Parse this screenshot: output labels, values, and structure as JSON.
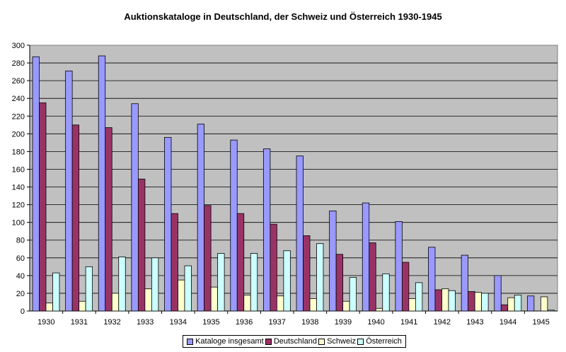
{
  "chart_data": {
    "type": "bar",
    "title": "Auktionskataloge in Deutschland, der Schweiz und Österreich 1930-1945",
    "xlabel": "",
    "ylabel": "",
    "ylim": [
      0,
      300
    ],
    "yticks": [
      "0",
      "20",
      "40",
      "60",
      "80",
      "100",
      "120",
      "140",
      "160",
      "180",
      "200",
      "220",
      "240",
      "260",
      "280",
      "300"
    ],
    "categories": [
      "1930",
      "1931",
      "1932",
      "1933",
      "1934",
      "1935",
      "1936",
      "1937",
      "1938",
      "1939",
      "1940",
      "1941",
      "1942",
      "1943",
      "1944",
      "1945"
    ],
    "grid": true,
    "legend_position": "bottom",
    "series": [
      {
        "name": "Kataloge insgesamt",
        "color": "#9999ff",
        "values": [
          287,
          271,
          288,
          234,
          196,
          211,
          193,
          183,
          175,
          113,
          122,
          101,
          72,
          63,
          40,
          17
        ]
      },
      {
        "name": "Deutschland",
        "color": "#993366",
        "values": [
          235,
          210,
          207,
          149,
          110,
          119,
          110,
          98,
          85,
          64,
          77,
          55,
          24,
          22,
          7,
          0
        ]
      },
      {
        "name": "Schweiz",
        "color": "#ffffcc",
        "values": [
          9,
          11,
          20,
          25,
          35,
          27,
          18,
          17,
          14,
          11,
          3,
          14,
          25,
          21,
          15,
          16
        ]
      },
      {
        "name": "Österreich",
        "color": "#ccffff",
        "values": [
          43,
          50,
          61,
          60,
          51,
          65,
          65,
          68,
          76,
          38,
          42,
          32,
          23,
          20,
          18,
          1
        ]
      }
    ],
    "plot_background": "#c0c0c0"
  }
}
